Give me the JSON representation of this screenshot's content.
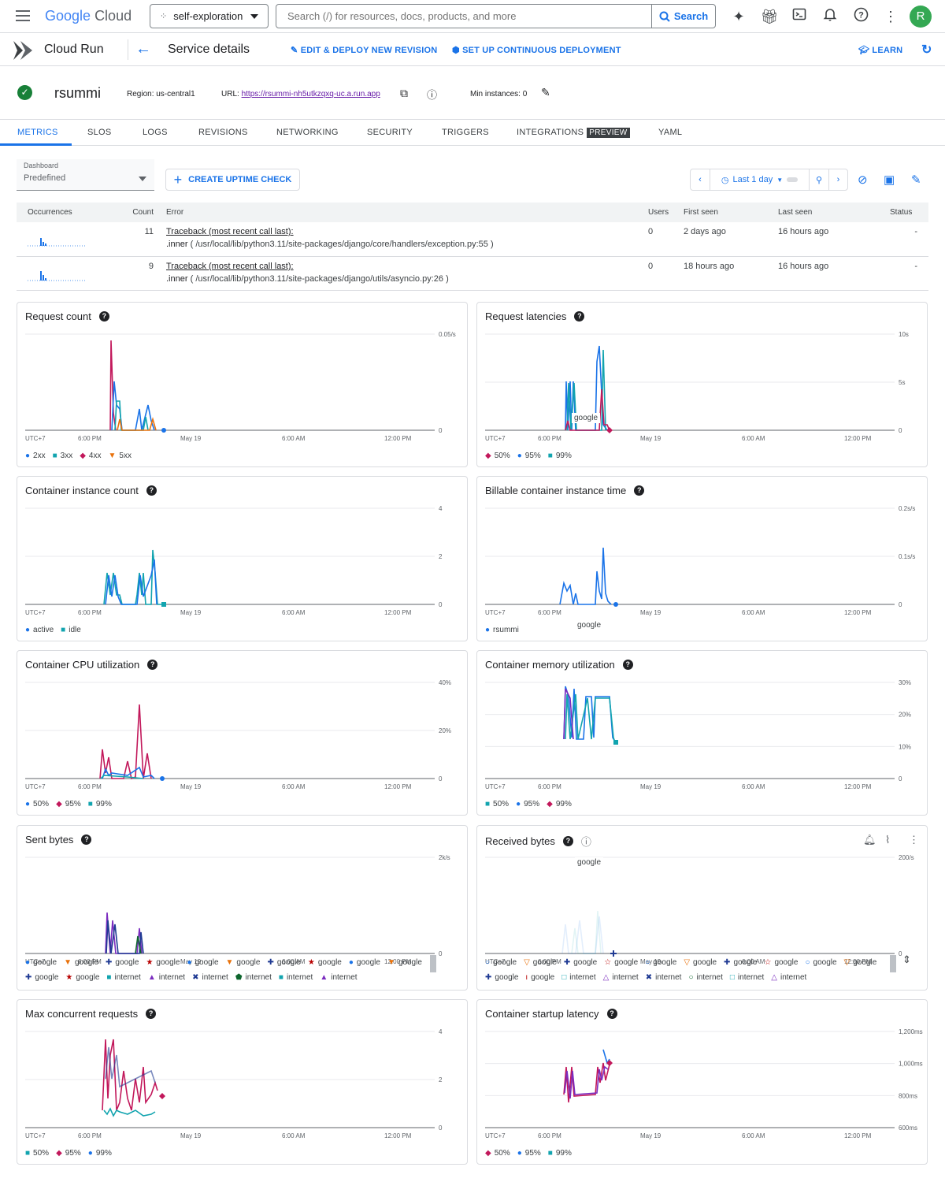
{
  "topbar": {
    "logo_google": "Google",
    "logo_cloud": "Cloud",
    "project": "self-exploration",
    "search_placeholder": "Search (/) for resources, docs, products, and more",
    "search_button": "Search",
    "avatar_initial": "R"
  },
  "servicebar": {
    "product": "Cloud Run",
    "title": "Service details",
    "edit_deploy": "EDIT & DEPLOY NEW REVISION",
    "continuous": "SET UP CONTINUOUS DEPLOYMENT",
    "learn": "LEARN"
  },
  "service": {
    "name": "rsummi",
    "region": "Region: us-central1",
    "url_label": "URL:",
    "url": "https://rsummi-nh5utkzqxq-uc.a.run.app",
    "min_instances": "Min instances: 0"
  },
  "tabs": [
    "METRICS",
    "SLOS",
    "LOGS",
    "REVISIONS",
    "NETWORKING",
    "SECURITY",
    "TRIGGERS",
    "INTEGRATIONS",
    "YAML"
  ],
  "preview_badge": "PREVIEW",
  "controls": {
    "dashboard_label": "Dashboard",
    "dashboard_value": "Predefined",
    "uptime_check": "CREATE UPTIME CHECK",
    "time_range": "Last 1 day"
  },
  "errors": {
    "headers": [
      "Occurrences",
      "Count",
      "Error",
      "Users",
      "First seen",
      "Last seen",
      "Status"
    ],
    "rows": [
      {
        "count": "11",
        "title": "Traceback (most recent call last):",
        "fn": ".inner",
        "detail": "( /usr/local/lib/python3.11/site-packages/django/core/handlers/exception.py:55 )",
        "users": "0",
        "first_seen": "2 days ago",
        "last_seen": "16 hours ago",
        "status": "-"
      },
      {
        "count": "9",
        "title": "Traceback (most recent call last):",
        "fn": ".inner",
        "detail": "( /usr/local/lib/python3.11/site-packages/django/utils/asyncio.py:26 )",
        "users": "0",
        "first_seen": "18 hours ago",
        "last_seen": "16 hours ago",
        "status": "-"
      }
    ]
  },
  "x_ticks": [
    "UTC+7",
    "6:00 PM",
    "May 19",
    "6:00 AM",
    "12:00 PM"
  ],
  "colors": {
    "blue": "#1a73e8",
    "teal": "#12a4af",
    "magenta": "#c2185b",
    "orange": "#e8710a",
    "navy": "#1f3a93",
    "red": "#b80000",
    "green": "#0d652d",
    "purple": "#7b2cbf"
  },
  "charts": [
    {
      "title": "Request count",
      "yticks": [
        "0.05/s",
        "0"
      ],
      "legend": [
        {
          "m": "●",
          "c": "blue",
          "t": "2xx"
        },
        {
          "m": "■",
          "c": "teal",
          "t": "3xx"
        },
        {
          "m": "◆",
          "c": "magenta",
          "t": "4xx"
        },
        {
          "m": "▼",
          "c": "orange",
          "t": "5xx"
        }
      ]
    },
    {
      "title": "Request latencies",
      "yticks": [
        "10s",
        "5s",
        "0"
      ],
      "float": "google",
      "legend": [
        {
          "m": "◆",
          "c": "magenta",
          "t": "50%"
        },
        {
          "m": "●",
          "c": "blue",
          "t": "95%"
        },
        {
          "m": "■",
          "c": "teal",
          "t": "99%"
        }
      ]
    },
    {
      "title": "Container instance count",
      "yticks": [
        "4",
        "2",
        "0"
      ],
      "legend": [
        {
          "m": "●",
          "c": "blue",
          "t": "active"
        },
        {
          "m": "■",
          "c": "teal",
          "t": "idle"
        }
      ]
    },
    {
      "title": "Billable container instance time",
      "yticks": [
        "0.2s/s",
        "0.1s/s",
        "0"
      ],
      "float": "google",
      "legend": [
        {
          "m": "●",
          "c": "blue",
          "t": "rsummi"
        }
      ]
    },
    {
      "title": "Container CPU utilization",
      "yticks": [
        "40%",
        "20%",
        "0"
      ],
      "legend": [
        {
          "m": "●",
          "c": "blue",
          "t": "50%"
        },
        {
          "m": "◆",
          "c": "magenta",
          "t": "95%"
        },
        {
          "m": "■",
          "c": "teal",
          "t": "99%"
        }
      ]
    },
    {
      "title": "Container memory utilization",
      "yticks": [
        "30%",
        "20%",
        "10%",
        "0"
      ],
      "legend": [
        {
          "m": "■",
          "c": "teal",
          "t": "50%"
        },
        {
          "m": "●",
          "c": "blue",
          "t": "95%"
        },
        {
          "m": "◆",
          "c": "magenta",
          "t": "99%"
        }
      ]
    },
    {
      "title": "Sent bytes",
      "yticks": [
        "2k/s",
        "0"
      ],
      "legend": [
        {
          "m": "●",
          "c": "blue",
          "t": "google"
        },
        {
          "m": "▼",
          "c": "orange",
          "t": "google"
        },
        {
          "m": "✚",
          "c": "navy",
          "t": "google"
        },
        {
          "m": "★",
          "c": "red",
          "t": "google"
        },
        {
          "m": "●",
          "c": "blue",
          "t": "google"
        },
        {
          "m": "▼",
          "c": "orange",
          "t": "google"
        },
        {
          "m": "✚",
          "c": "navy",
          "t": "google"
        },
        {
          "m": "★",
          "c": "red",
          "t": "google"
        },
        {
          "m": "●",
          "c": "blue",
          "t": "google"
        },
        {
          "m": "▼",
          "c": "orange",
          "t": "google"
        },
        {
          "m": "✚",
          "c": "navy",
          "t": "google"
        },
        {
          "m": "★",
          "c": "red",
          "t": "google"
        },
        {
          "m": "■",
          "c": "teal",
          "t": "internet"
        },
        {
          "m": "▲",
          "c": "purple",
          "t": "internet"
        },
        {
          "m": "✖",
          "c": "navy",
          "t": "internet"
        },
        {
          "m": "⬟",
          "c": "green",
          "t": "internet"
        },
        {
          "m": "■",
          "c": "teal",
          "t": "internet"
        },
        {
          "m": "▲",
          "c": "purple",
          "t": "internet"
        }
      ]
    },
    {
      "title": "Received bytes",
      "yticks": [
        "200/s",
        "0"
      ],
      "float": "google",
      "legend": [
        {
          "m": "○",
          "c": "blue",
          "t": "google"
        },
        {
          "m": "▽",
          "c": "orange",
          "t": "google"
        },
        {
          "m": "✚",
          "c": "navy",
          "t": "google"
        },
        {
          "m": "☆",
          "c": "red",
          "t": "google"
        },
        {
          "m": "○",
          "c": "blue",
          "t": "google"
        },
        {
          "m": "▽",
          "c": "orange",
          "t": "google"
        },
        {
          "m": "✚",
          "c": "navy",
          "t": "google"
        },
        {
          "m": "☆",
          "c": "red",
          "t": "google"
        },
        {
          "m": "○",
          "c": "blue",
          "t": "google"
        },
        {
          "m": "▽",
          "c": "orange",
          "t": "google"
        },
        {
          "m": "✚",
          "c": "navy",
          "t": "google"
        },
        {
          "m": "ı",
          "c": "red",
          "t": "google"
        },
        {
          "m": "□",
          "c": "teal",
          "t": "internet"
        },
        {
          "m": "△",
          "c": "purple",
          "t": "internet"
        },
        {
          "m": "✖",
          "c": "navy",
          "t": "internet"
        },
        {
          "m": "○",
          "c": "green",
          "t": "internet"
        },
        {
          "m": "□",
          "c": "teal",
          "t": "internet"
        },
        {
          "m": "△",
          "c": "purple",
          "t": "internet"
        }
      ]
    },
    {
      "title": "Max concurrent requests",
      "yticks": [
        "4",
        "2",
        "0"
      ],
      "legend": [
        {
          "m": "■",
          "c": "teal",
          "t": "50%"
        },
        {
          "m": "◆",
          "c": "magenta",
          "t": "95%"
        },
        {
          "m": "●",
          "c": "blue",
          "t": "99%"
        }
      ]
    },
    {
      "title": "Container startup latency",
      "yticks": [
        "1,200ms",
        "1,000ms",
        "800ms",
        "600ms"
      ],
      "legend": [
        {
          "m": "◆",
          "c": "magenta",
          "t": "50%"
        },
        {
          "m": "●",
          "c": "blue",
          "t": "95%"
        },
        {
          "m": "■",
          "c": "teal",
          "t": "99%"
        }
      ]
    }
  ]
}
